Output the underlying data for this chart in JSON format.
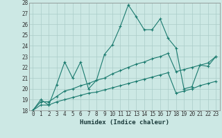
{
  "title": "",
  "xlabel": "Humidex (Indice chaleur)",
  "ylabel": "",
  "x": [
    0,
    1,
    2,
    3,
    4,
    5,
    6,
    7,
    8,
    9,
    10,
    11,
    12,
    13,
    14,
    15,
    16,
    17,
    18,
    19,
    20,
    21,
    22,
    23
  ],
  "line1": [
    18.0,
    19.0,
    18.5,
    20.4,
    22.5,
    21.0,
    22.5,
    20.0,
    20.8,
    23.2,
    24.1,
    25.8,
    27.8,
    26.7,
    25.5,
    25.5,
    26.5,
    24.7,
    23.8,
    20.0,
    20.2,
    22.2,
    22.1,
    23.0
  ],
  "line2": [
    18.0,
    18.8,
    18.8,
    19.3,
    19.8,
    20.0,
    20.3,
    20.5,
    20.8,
    21.0,
    21.4,
    21.7,
    22.0,
    22.3,
    22.5,
    22.8,
    23.0,
    23.3,
    21.6,
    21.8,
    22.0,
    22.2,
    22.4,
    23.0
  ],
  "line3": [
    18.0,
    18.5,
    18.5,
    18.8,
    19.0,
    19.2,
    19.4,
    19.6,
    19.7,
    19.9,
    20.1,
    20.3,
    20.5,
    20.7,
    20.9,
    21.1,
    21.3,
    21.5,
    19.6,
    19.8,
    20.0,
    20.3,
    20.5,
    20.7
  ],
  "color": "#1a7a6e",
  "bg_color": "#cce8e4",
  "grid_color": "#aaccc8",
  "ylim": [
    18,
    28
  ],
  "yticks": [
    18,
    19,
    20,
    21,
    22,
    23,
    24,
    25,
    26,
    27,
    28
  ],
  "xticks": [
    0,
    1,
    2,
    3,
    4,
    5,
    6,
    7,
    8,
    9,
    10,
    11,
    12,
    13,
    14,
    15,
    16,
    17,
    18,
    19,
    20,
    21,
    22,
    23
  ],
  "marker": "+",
  "markersize": 3,
  "linewidth": 0.8,
  "xlabel_fontsize": 6.5,
  "tick_fontsize": 5.5
}
